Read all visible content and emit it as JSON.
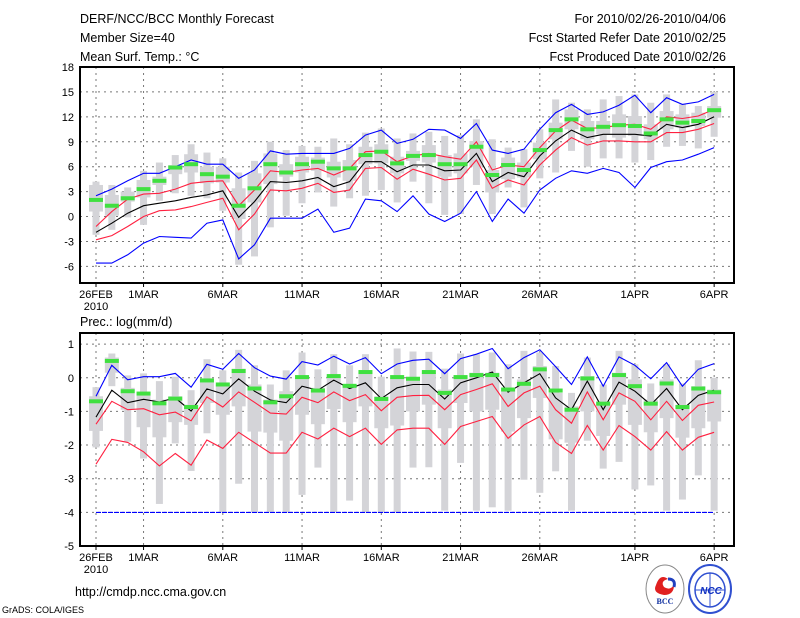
{
  "header": {
    "title": "DERF/NCC/BCC Monthly Forecast",
    "member_size": "Member Size=40",
    "variable": "Mean Surf. Temp.: °C",
    "period": "For 2010/02/26-2010/04/06",
    "start_date": "Fcst Started Refer Date 2010/02/25",
    "produced_date": "Fcst Produced Date 2010/02/26"
  },
  "footer": {
    "url": "http://cmdp.ncc.cma.gov.cn",
    "credit": "GrADS: COLA/IGES",
    "logo_left": "BCC",
    "logo_right": "NCC"
  },
  "colors": {
    "mean": "#000000",
    "spread": "#ff2040",
    "extreme": "#0000ff",
    "green": "#40e040",
    "box": "#d4d4d8"
  },
  "chart_data": [
    {
      "type": "line",
      "title": "Mean Surf. Temp.: °C",
      "xlabel": "",
      "ylabel": "°C",
      "ylim": [
        -8,
        18
      ],
      "yticks": [
        18,
        15,
        12,
        9,
        6,
        3,
        0,
        -3,
        -6
      ],
      "xtick_days": [
        0,
        3,
        8,
        13,
        18,
        23,
        28,
        34,
        39
      ],
      "xtick_labels": [
        "26FEB",
        "1MAR",
        "6MAR",
        "11MAR",
        "16MAR",
        "21MAR",
        "26MAR",
        "1APR",
        "6APR"
      ],
      "year_label": "2010",
      "grid": true,
      "days": 40,
      "series": [
        {
          "name": "mean",
          "color": "#000000",
          "values": [
            -1.9,
            -0.8,
            0.4,
            1.3,
            1.6,
            1.9,
            2.3,
            2.6,
            3.1,
            -0.1,
            1.8,
            4.2,
            4.1,
            4.3,
            4.7,
            3.6,
            4.2,
            6.6,
            6.6,
            5.4,
            6.2,
            6.2,
            5.5,
            5.6,
            7.6,
            4.2,
            5.3,
            4.8,
            7.3,
            9.1,
            10.4,
            9.5,
            9.9,
            9.9,
            9.9,
            9.7,
            11.1,
            10.7,
            11.1,
            12.0
          ]
        },
        {
          "name": "upper",
          "color": "#ff2040",
          "values": [
            -1.2,
            0.6,
            2.1,
            2.7,
            2.8,
            3.3,
            4.0,
            4.2,
            4.3,
            1.3,
            3.2,
            5.5,
            5.3,
            5.6,
            5.8,
            5.0,
            5.8,
            7.8,
            7.9,
            6.6,
            7.3,
            7.6,
            7.2,
            6.9,
            9.0,
            5.6,
            6.2,
            6.0,
            8.3,
            10.3,
            11.6,
            10.6,
            10.7,
            11.0,
            11.1,
            10.5,
            12.0,
            11.8,
            12.1,
            12.9
          ]
        },
        {
          "name": "lower",
          "color": "#ff2040",
          "values": [
            -2.8,
            -2.3,
            -1.2,
            0.0,
            0.7,
            0.8,
            1.2,
            1.7,
            2.2,
            -1.6,
            0.3,
            3.2,
            3.1,
            3.4,
            4.0,
            2.9,
            3.2,
            5.8,
            5.9,
            4.5,
            5.7,
            5.1,
            4.4,
            4.6,
            6.8,
            3.4,
            4.4,
            3.8,
            6.2,
            8.0,
            9.5,
            8.6,
            9.1,
            9.1,
            9.0,
            9.0,
            10.1,
            10.1,
            10.5,
            11.2
          ]
        },
        {
          "name": "max",
          "color": "#0000ff",
          "values": [
            2.5,
            3.3,
            4.3,
            5.2,
            5.2,
            6.0,
            6.8,
            6.3,
            6.3,
            4.6,
            5.6,
            7.9,
            7.5,
            7.6,
            7.6,
            7.6,
            8.2,
            9.8,
            10.4,
            8.8,
            9.3,
            10.5,
            10.4,
            9.4,
            11.2,
            8.0,
            7.6,
            8.1,
            10.5,
            12.5,
            13.5,
            12.3,
            12.6,
            13.4,
            14.6,
            12.5,
            14.3,
            13.5,
            13.8,
            14.7
          ]
        },
        {
          "name": "min",
          "color": "#0000ff",
          "values": [
            -5.6,
            -5.6,
            -4.6,
            -3.2,
            -2.4,
            -2.5,
            -2.6,
            -0.8,
            -0.4,
            -5.1,
            -3.4,
            -0.2,
            -0.2,
            -0.2,
            0.9,
            -1.9,
            -1.4,
            2.1,
            1.9,
            0.6,
            2.5,
            0.3,
            -0.6,
            0.4,
            3.0,
            -0.6,
            2.1,
            0.4,
            3.2,
            4.6,
            5.5,
            5.2,
            5.8,
            5.3,
            3.5,
            5.9,
            6.6,
            6.8,
            7.5,
            8.3
          ]
        }
      ],
      "green_marks": [
        2.0,
        1.3,
        2.2,
        3.3,
        4.3,
        5.9,
        6.3,
        5.1,
        4.8,
        1.3,
        3.4,
        6.3,
        5.3,
        6.3,
        6.6,
        5.8,
        5.8,
        7.4,
        7.8,
        6.4,
        7.3,
        7.4,
        6.3,
        6.3,
        8.4,
        5.0,
        6.2,
        5.6,
        8.0,
        10.4,
        11.7,
        10.5,
        10.8,
        11.0,
        10.9,
        10.0,
        11.7,
        11.3,
        11.5,
        12.8
      ],
      "boxes": {
        "whisker_lo": [
          -2.2,
          -1.6,
          -0.1,
          -1.0,
          1.9,
          2.8,
          2.5,
          2.2,
          0.7,
          -5.8,
          -4.8,
          -1.3,
          0.1,
          1.6,
          2.9,
          1.2,
          2.2,
          2.5,
          3.2,
          1.7,
          4.2,
          1.6,
          0.2,
          0.3,
          3.8,
          0.3,
          3.5,
          1.1,
          4.6,
          5.3,
          7.9,
          6.0,
          7.0,
          7.0,
          6.5,
          6.8,
          8.4,
          8.5,
          8.2,
          9.6
        ],
        "whisker_hi": [
          4.2,
          3.8,
          3.5,
          5.5,
          6.5,
          7.4,
          8.7,
          7.7,
          7.0,
          5.3,
          6.7,
          9.0,
          8.0,
          8.5,
          8.4,
          9.4,
          8.7,
          10.1,
          10.6,
          9.4,
          10.0,
          10.2,
          9.7,
          9.8,
          11.7,
          9.3,
          8.3,
          8.1,
          10.5,
          14.1,
          13.7,
          12.9,
          14.1,
          14.5,
          14.7,
          13.7,
          14.7,
          13.5,
          13.3,
          15.0
        ],
        "box_lo": [
          0.6,
          0.1,
          1.8,
          2.3,
          3.8,
          5.1,
          5.3,
          4.0,
          4.1,
          -0.3,
          1.7,
          3.9,
          4.8,
          5.3,
          5.5,
          4.7,
          4.3,
          6.3,
          6.4,
          5.2,
          6.7,
          6.5,
          4.8,
          5.2,
          6.0,
          2.9,
          4.5,
          4.7,
          6.9,
          9.3,
          10.5,
          9.3,
          9.9,
          9.5,
          9.7,
          9.3,
          10.5,
          10.7,
          10.9,
          11.9
        ],
        "box_hi": [
          3.8,
          2.6,
          3.0,
          4.4,
          4.8,
          6.2,
          7.5,
          6.0,
          6.0,
          3.4,
          5.2,
          7.6,
          6.3,
          7.2,
          7.1,
          6.6,
          6.8,
          8.4,
          8.7,
          7.2,
          7.9,
          8.6,
          7.4,
          7.6,
          9.1,
          5.6,
          7.1,
          6.5,
          8.9,
          11.3,
          12.9,
          11.5,
          11.5,
          12.3,
          12.1,
          11.1,
          12.7,
          12.3,
          12.5,
          13.3
        ]
      }
    },
    {
      "type": "line",
      "title": "Prec.: log(mm/d)",
      "xlabel": "",
      "ylabel": "log(mm/d)",
      "ylim": [
        -5,
        1.33
      ],
      "yticks": [
        1,
        0,
        -1,
        -2,
        -3,
        -4,
        -5
      ],
      "xtick_days": [
        0,
        3,
        8,
        13,
        18,
        23,
        28,
        34,
        39
      ],
      "xtick_labels": [
        "26FEB",
        "1MAR",
        "6MAR",
        "11MAR",
        "16MAR",
        "21MAR",
        "26MAR",
        "1APR",
        "6APR"
      ],
      "year_label": "2010",
      "grid": true,
      "days": 40,
      "series": [
        {
          "name": "mean",
          "color": "#000000",
          "values": [
            -1.17,
            -0.37,
            -0.74,
            -0.64,
            -0.72,
            -0.6,
            -0.99,
            -0.33,
            -0.48,
            -0.03,
            -0.4,
            -0.66,
            -0.74,
            -0.25,
            -0.37,
            -0.07,
            -0.32,
            -0.15,
            -0.62,
            -0.3,
            -0.2,
            -0.2,
            -0.63,
            -0.15,
            0.0,
            0.17,
            -0.43,
            -0.15,
            0.12,
            -0.6,
            -0.95,
            -0.1,
            -0.95,
            -0.13,
            -0.4,
            -0.8,
            -0.32,
            -0.95,
            -0.52,
            -0.37
          ]
        },
        {
          "name": "upper",
          "color": "#ff2040",
          "values": [
            -1.38,
            -0.7,
            -0.95,
            -0.92,
            -1.1,
            -1.02,
            -1.28,
            -0.57,
            -0.87,
            -0.42,
            -0.73,
            -1.05,
            -1.08,
            -0.58,
            -0.74,
            -0.42,
            -0.68,
            -0.5,
            -0.98,
            -0.58,
            -0.53,
            -0.52,
            -0.95,
            -0.5,
            -0.35,
            -0.18,
            -0.85,
            -0.45,
            -0.25,
            -0.95,
            -1.35,
            -0.42,
            -1.25,
            -0.45,
            -0.7,
            -1.25,
            -0.7,
            -1.27,
            -0.82,
            -0.72
          ]
        },
        {
          "name": "lower",
          "color": "#ff2040",
          "values": [
            -2.57,
            -1.83,
            -1.92,
            -2.2,
            -2.62,
            -2.25,
            -2.6,
            -1.85,
            -2.1,
            -1.62,
            -1.93,
            -2.24,
            -2.24,
            -1.62,
            -1.82,
            -1.5,
            -1.75,
            -1.5,
            -1.98,
            -1.55,
            -1.5,
            -1.5,
            -1.98,
            -1.45,
            -1.3,
            -1.15,
            -1.8,
            -1.4,
            -1.15,
            -1.92,
            -2.25,
            -1.42,
            -2.15,
            -1.42,
            -1.75,
            -2.15,
            -1.6,
            -2.15,
            -1.77,
            -1.62
          ]
        },
        {
          "name": "max",
          "color": "#0000ff",
          "values": [
            -0.55,
            0.37,
            -0.06,
            0.03,
            0.03,
            0.13,
            -0.28,
            0.4,
            0.25,
            0.72,
            0.3,
            0.05,
            -0.04,
            0.48,
            0.38,
            0.64,
            0.41,
            0.6,
            0.12,
            0.41,
            0.52,
            0.55,
            0.12,
            0.57,
            0.7,
            0.87,
            0.27,
            0.6,
            0.83,
            0.33,
            -0.2,
            0.62,
            -0.25,
            0.62,
            0.37,
            -0.03,
            0.45,
            -0.25,
            0.25,
            0.42
          ]
        },
        {
          "name": "min",
          "color": "#0000ff",
          "values": [
            -4,
            -4,
            -4,
            -4,
            -4,
            -4,
            -4,
            -4,
            -4,
            -4,
            -4,
            -4,
            -4,
            -4,
            -4,
            -4,
            -4,
            -4,
            -4,
            -4,
            -4,
            -4,
            -4,
            -4,
            -4,
            -4,
            -4,
            -4,
            -4,
            -4,
            -4,
            -4,
            -4,
            -4,
            -4,
            -4,
            -4,
            -4,
            -4,
            -4
          ]
        }
      ],
      "green_marks": [
        -0.7,
        0.5,
        -0.4,
        -0.47,
        -0.76,
        -0.62,
        -0.87,
        -0.08,
        -0.2,
        0.2,
        -0.32,
        -0.73,
        -0.55,
        0.02,
        -0.38,
        0.05,
        -0.24,
        0.17,
        -0.63,
        0.02,
        -0.03,
        0.17,
        -0.45,
        0.02,
        0.08,
        0.08,
        -0.35,
        -0.18,
        0.25,
        -0.38,
        -0.95,
        -0.02,
        -0.77,
        0.08,
        -0.25,
        -0.77,
        -0.17,
        -0.87,
        -0.32,
        -0.43
      ],
      "boxes": {
        "whisker_lo": [
          -2.07,
          -0.25,
          -1.9,
          -2.4,
          -3.75,
          -1.95,
          -2.77,
          -1.65,
          -4.0,
          -3.15,
          -4.0,
          -4.0,
          -4.0,
          -3.48,
          -2.67,
          -4.0,
          -3.65,
          -4.0,
          -4.0,
          -4.0,
          -2.67,
          -2.66,
          -3.95,
          -2.53,
          -3.95,
          -3.85,
          -3.95,
          -3.03,
          -3.42,
          -2.78,
          -3.95,
          -1.87,
          -2.7,
          -2.5,
          -3.32,
          -3.2,
          -3.95,
          -3.62,
          -2.9,
          -3.95
        ],
        "whisker_hi": [
          -0.28,
          0.72,
          0.07,
          0.13,
          -0.1,
          0.03,
          -0.37,
          0.55,
          0.22,
          0.83,
          0.37,
          -0.2,
          0.22,
          0.75,
          0.25,
          0.7,
          0.37,
          0.7,
          0.03,
          0.87,
          0.78,
          0.77,
          0.27,
          0.72,
          0.7,
          0.75,
          0.4,
          0.8,
          0.75,
          0.35,
          -0.45,
          0.6,
          -0.2,
          0.8,
          0.4,
          -0.17,
          0.4,
          -0.17,
          0.52,
          0.0
        ],
        "box_lo": [
          -1.58,
          0.15,
          -0.95,
          -1.47,
          -1.77,
          -1.32,
          -1.4,
          -0.75,
          -1.1,
          -0.85,
          -1.6,
          -1.63,
          -1.87,
          -1.1,
          -1.38,
          -0.93,
          -1.32,
          -0.85,
          -1.5,
          -1.42,
          -1.0,
          -0.8,
          -1.5,
          -0.75,
          -1.0,
          -0.95,
          -1.6,
          -1.2,
          -0.6,
          -1.83,
          -1.93,
          -1.0,
          -1.73,
          -0.8,
          -1.4,
          -1.62,
          -1.2,
          -1.78,
          -1.5,
          -1.3
        ],
        "box_hi": [
          -0.55,
          0.6,
          -0.3,
          -0.5,
          -0.65,
          -0.55,
          -0.8,
          -0.05,
          -0.2,
          0.27,
          -0.2,
          -0.65,
          -0.4,
          0.0,
          -0.3,
          0.05,
          -0.2,
          0.17,
          -0.55,
          -0.02,
          0.0,
          0.15,
          -0.35,
          0.05,
          0.15,
          0.15,
          -0.3,
          -0.05,
          0.35,
          -0.45,
          -0.85,
          0.05,
          -0.7,
          0.15,
          -0.05,
          -0.65,
          -0.05,
          -0.8,
          -0.25,
          -0.35
        ]
      }
    }
  ]
}
